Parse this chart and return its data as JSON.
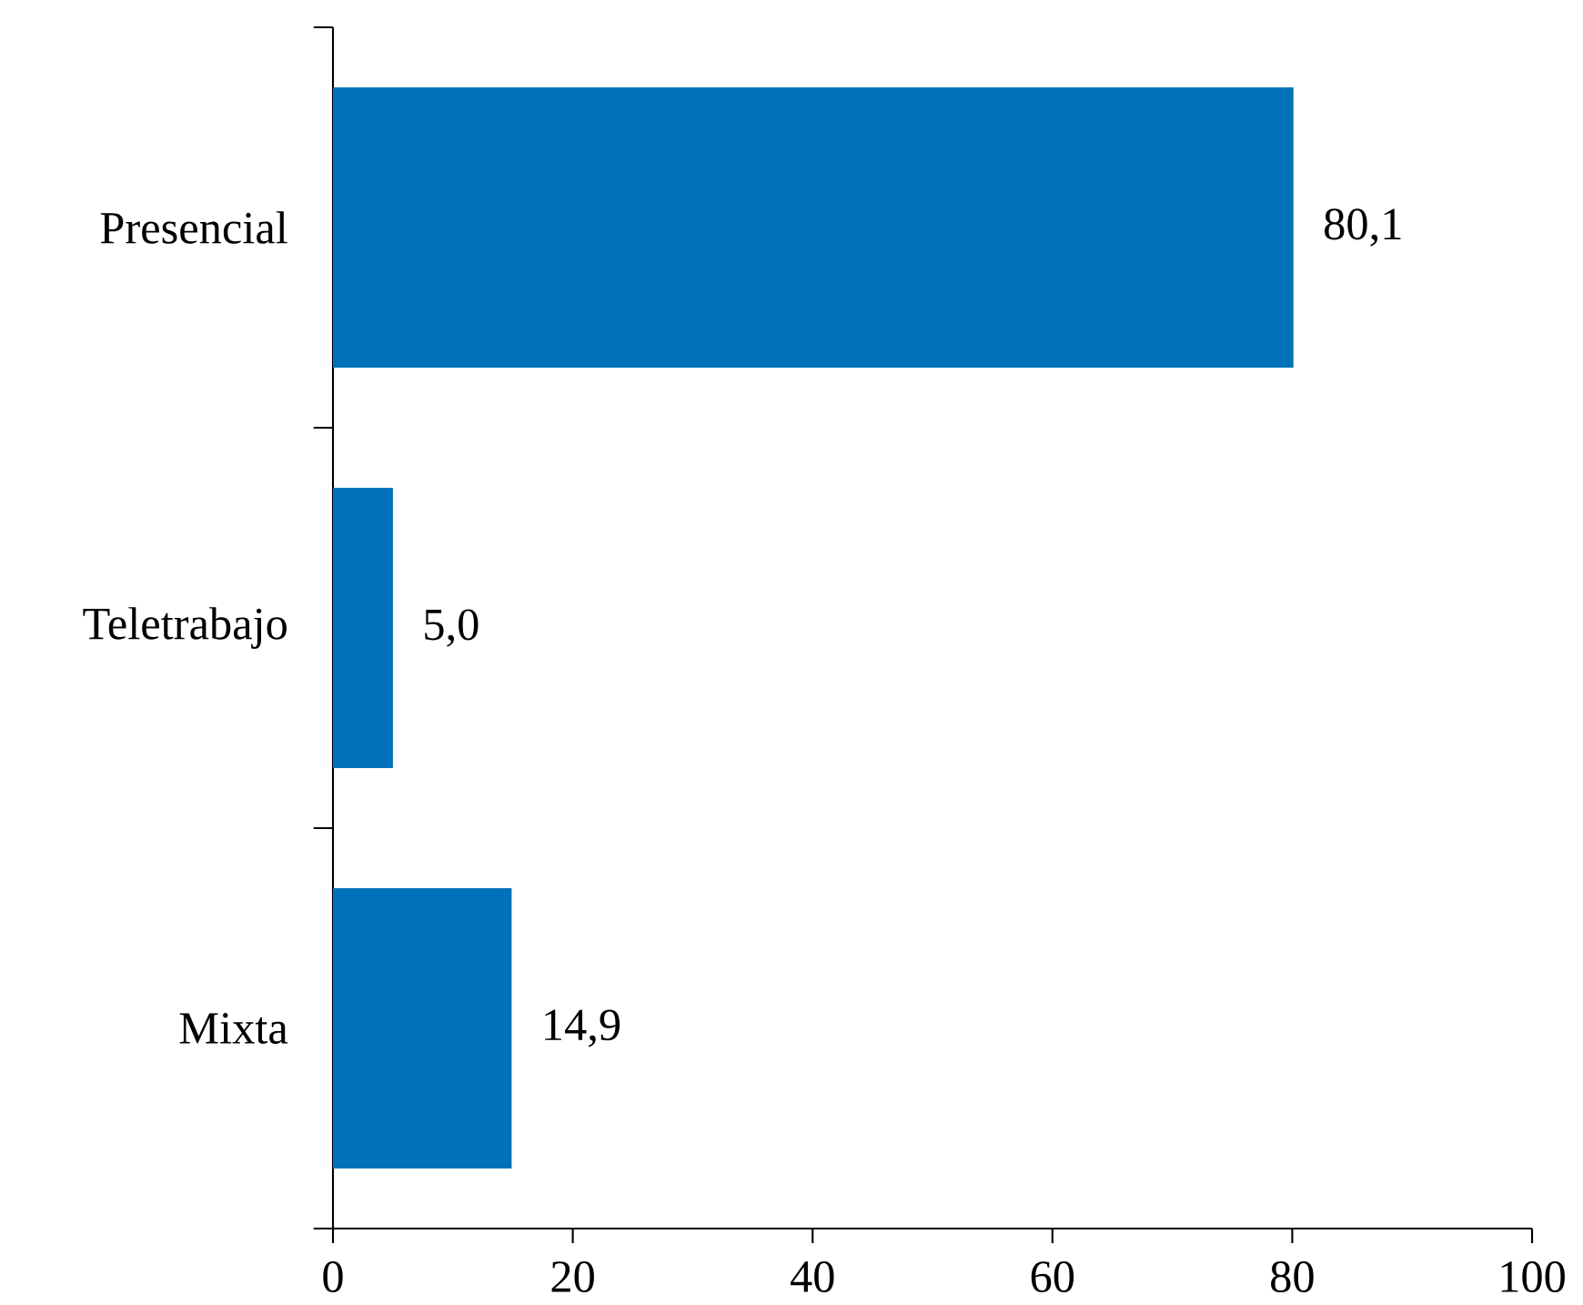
{
  "chart_data": {
    "type": "bar",
    "orientation": "horizontal",
    "categories": [
      "Presencial",
      "Teletrabajo",
      "Mixta"
    ],
    "values": [
      80.1,
      5.0,
      14.9
    ],
    "value_labels": [
      "80,1",
      "5,0",
      "14,9"
    ],
    "color": "#0072b9",
    "xlim": [
      0,
      100
    ],
    "xticks": [
      0,
      20,
      40,
      60,
      80,
      100
    ],
    "grid": false
  }
}
